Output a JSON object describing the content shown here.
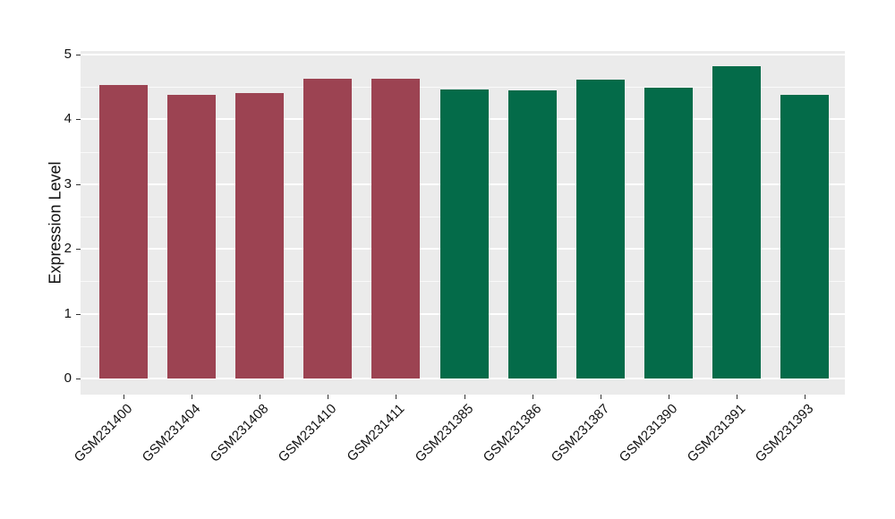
{
  "page": {
    "background": "#FFFFFF"
  },
  "colors": {
    "panel_bg": "#EBEBEB",
    "gridline": "#FFFFFF",
    "bar_maroon": "#9C4352",
    "bar_green": "#046B49",
    "tick": "#333333",
    "text": "#111111"
  },
  "chart_data": {
    "type": "bar",
    "title": "",
    "xlabel": "",
    "ylabel": "Expression Level",
    "ylim": [
      0,
      5
    ],
    "yticks": [
      0,
      1,
      2,
      3,
      4,
      5
    ],
    "grid": "major and minor horizontal white gridlines on gray panel",
    "legend": "none",
    "categories": [
      "GSM231400",
      "GSM231404",
      "GSM231408",
      "GSM231410",
      "GSM231411",
      "GSM231385",
      "GSM231386",
      "GSM231387",
      "GSM231390",
      "GSM231391",
      "GSM231393"
    ],
    "values": [
      4.53,
      4.38,
      4.41,
      4.63,
      4.63,
      4.46,
      4.45,
      4.62,
      4.49,
      4.82,
      4.38
    ],
    "bar_colors": [
      "#9C4352",
      "#9C4352",
      "#9C4352",
      "#9C4352",
      "#9C4352",
      "#046B49",
      "#046B49",
      "#046B49",
      "#046B49",
      "#046B49",
      "#046B49"
    ]
  }
}
